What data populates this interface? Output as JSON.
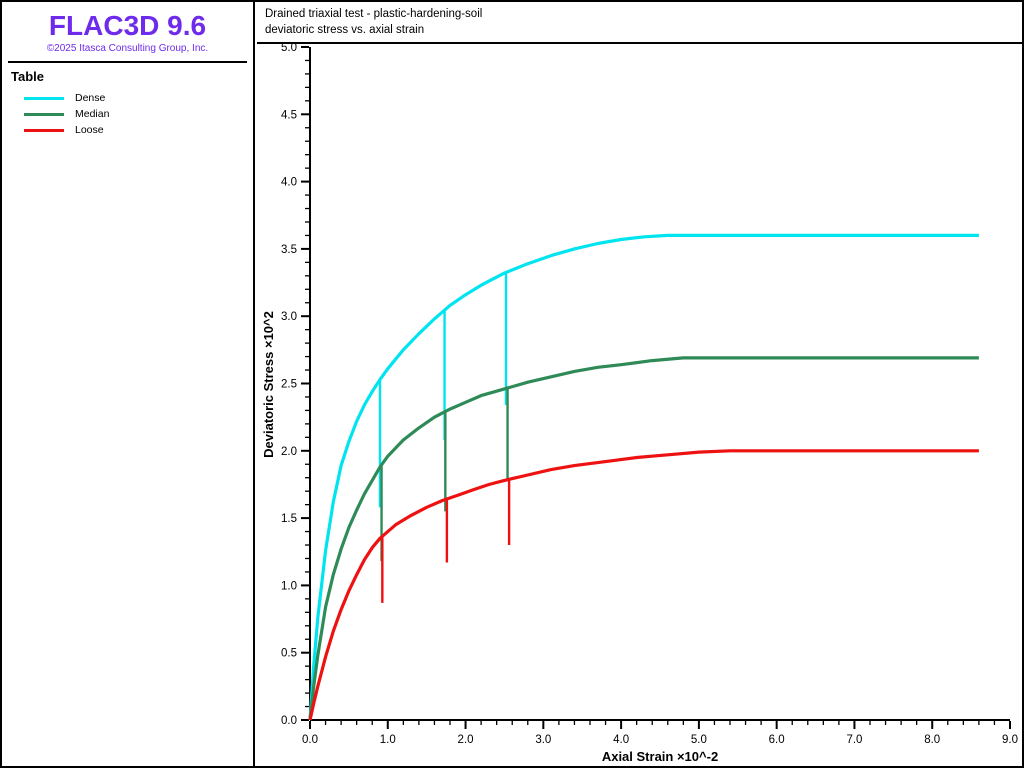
{
  "app": {
    "logo": "FLAC3D 9.6",
    "copyright": "©2025 Itasca Consulting Group, Inc.",
    "brand_color": "#6E2BEC"
  },
  "sidebar": {
    "section_title": "Table"
  },
  "chart_data": {
    "type": "line",
    "title": "Drained triaxial test - plastic-hardening-soil",
    "subtitle": "deviatoric stress vs. axial strain",
    "xlabel": "Axial Strain ×10^-2",
    "ylabel": "Deviatoric Stress ×10^2",
    "xlim": [
      0,
      9
    ],
    "ylim": [
      0,
      5
    ],
    "x_major_step": 1.0,
    "x_minor_step": 0.2,
    "y_major_step": 0.5,
    "y_minor_step": 0.1,
    "tick_label_format": "one-decimal",
    "grid": false,
    "axis_color": "#000000",
    "legend_position": "left-panel",
    "series": [
      {
        "name": "Dense",
        "color": "#00E4EF",
        "points": [
          [
            0,
            0
          ],
          [
            0.05,
            0.42
          ],
          [
            0.1,
            0.76
          ],
          [
            0.2,
            1.26
          ],
          [
            0.3,
            1.62
          ],
          [
            0.4,
            1.89
          ],
          [
            0.5,
            2.07
          ],
          [
            0.6,
            2.22
          ],
          [
            0.7,
            2.34
          ],
          [
            0.8,
            2.44
          ],
          [
            0.9,
            2.53
          ],
          [
            1.0,
            2.61
          ],
          [
            1.2,
            2.75
          ],
          [
            1.4,
            2.87
          ],
          [
            1.6,
            2.98
          ],
          [
            1.8,
            3.08
          ],
          [
            2.0,
            3.16
          ],
          [
            2.2,
            3.23
          ],
          [
            2.5,
            3.32
          ],
          [
            2.8,
            3.39
          ],
          [
            3.1,
            3.45
          ],
          [
            3.4,
            3.5
          ],
          [
            3.7,
            3.54
          ],
          [
            4.0,
            3.57
          ],
          [
            4.3,
            3.59
          ],
          [
            4.6,
            3.6
          ],
          [
            5.0,
            3.6
          ],
          [
            6.0,
            3.6
          ],
          [
            7.0,
            3.6
          ],
          [
            8.6,
            3.6
          ]
        ],
        "unload_spikes": [
          {
            "x": 0.9,
            "from": 2.53,
            "to": 1.58
          },
          {
            "x": 1.73,
            "from": 3.05,
            "to": 2.08
          },
          {
            "x": 2.52,
            "from": 3.32,
            "to": 2.34
          }
        ]
      },
      {
        "name": "Median",
        "color": "#2E8B57",
        "points": [
          [
            0,
            0
          ],
          [
            0.05,
            0.26
          ],
          [
            0.1,
            0.48
          ],
          [
            0.2,
            0.84
          ],
          [
            0.3,
            1.08
          ],
          [
            0.4,
            1.27
          ],
          [
            0.5,
            1.43
          ],
          [
            0.6,
            1.56
          ],
          [
            0.7,
            1.68
          ],
          [
            0.8,
            1.78
          ],
          [
            0.9,
            1.88
          ],
          [
            1.0,
            1.96
          ],
          [
            1.2,
            2.08
          ],
          [
            1.4,
            2.17
          ],
          [
            1.6,
            2.25
          ],
          [
            1.8,
            2.31
          ],
          [
            2.0,
            2.36
          ],
          [
            2.2,
            2.41
          ],
          [
            2.5,
            2.46
          ],
          [
            2.8,
            2.51
          ],
          [
            3.1,
            2.55
          ],
          [
            3.4,
            2.59
          ],
          [
            3.7,
            2.62
          ],
          [
            4.0,
            2.64
          ],
          [
            4.4,
            2.67
          ],
          [
            4.8,
            2.69
          ],
          [
            5.2,
            2.69
          ],
          [
            6.0,
            2.69
          ],
          [
            7.0,
            2.69
          ],
          [
            8.6,
            2.69
          ]
        ],
        "unload_spikes": [
          {
            "x": 0.92,
            "from": 1.89,
            "to": 1.18
          },
          {
            "x": 1.74,
            "from": 2.29,
            "to": 1.55
          },
          {
            "x": 2.54,
            "from": 2.46,
            "to": 1.79
          }
        ]
      },
      {
        "name": "Loose",
        "color": "#EE1111",
        "points": [
          [
            0,
            0
          ],
          [
            0.05,
            0.13
          ],
          [
            0.1,
            0.25
          ],
          [
            0.2,
            0.47
          ],
          [
            0.3,
            0.66
          ],
          [
            0.4,
            0.82
          ],
          [
            0.5,
            0.96
          ],
          [
            0.6,
            1.08
          ],
          [
            0.7,
            1.19
          ],
          [
            0.8,
            1.28
          ],
          [
            0.9,
            1.35
          ],
          [
            1.1,
            1.45
          ],
          [
            1.3,
            1.52
          ],
          [
            1.5,
            1.58
          ],
          [
            1.7,
            1.63
          ],
          [
            1.9,
            1.67
          ],
          [
            2.1,
            1.71
          ],
          [
            2.3,
            1.75
          ],
          [
            2.5,
            1.78
          ],
          [
            2.8,
            1.82
          ],
          [
            3.1,
            1.86
          ],
          [
            3.4,
            1.89
          ],
          [
            3.8,
            1.92
          ],
          [
            4.2,
            1.95
          ],
          [
            4.6,
            1.97
          ],
          [
            5.0,
            1.99
          ],
          [
            5.4,
            2.0
          ],
          [
            6.0,
            2.0
          ],
          [
            7.0,
            2.0
          ],
          [
            8.6,
            2.0
          ]
        ],
        "unload_spikes": [
          {
            "x": 0.93,
            "from": 1.36,
            "to": 0.87
          },
          {
            "x": 1.76,
            "from": 1.64,
            "to": 1.17
          },
          {
            "x": 2.56,
            "from": 1.79,
            "to": 1.3
          }
        ]
      }
    ]
  }
}
